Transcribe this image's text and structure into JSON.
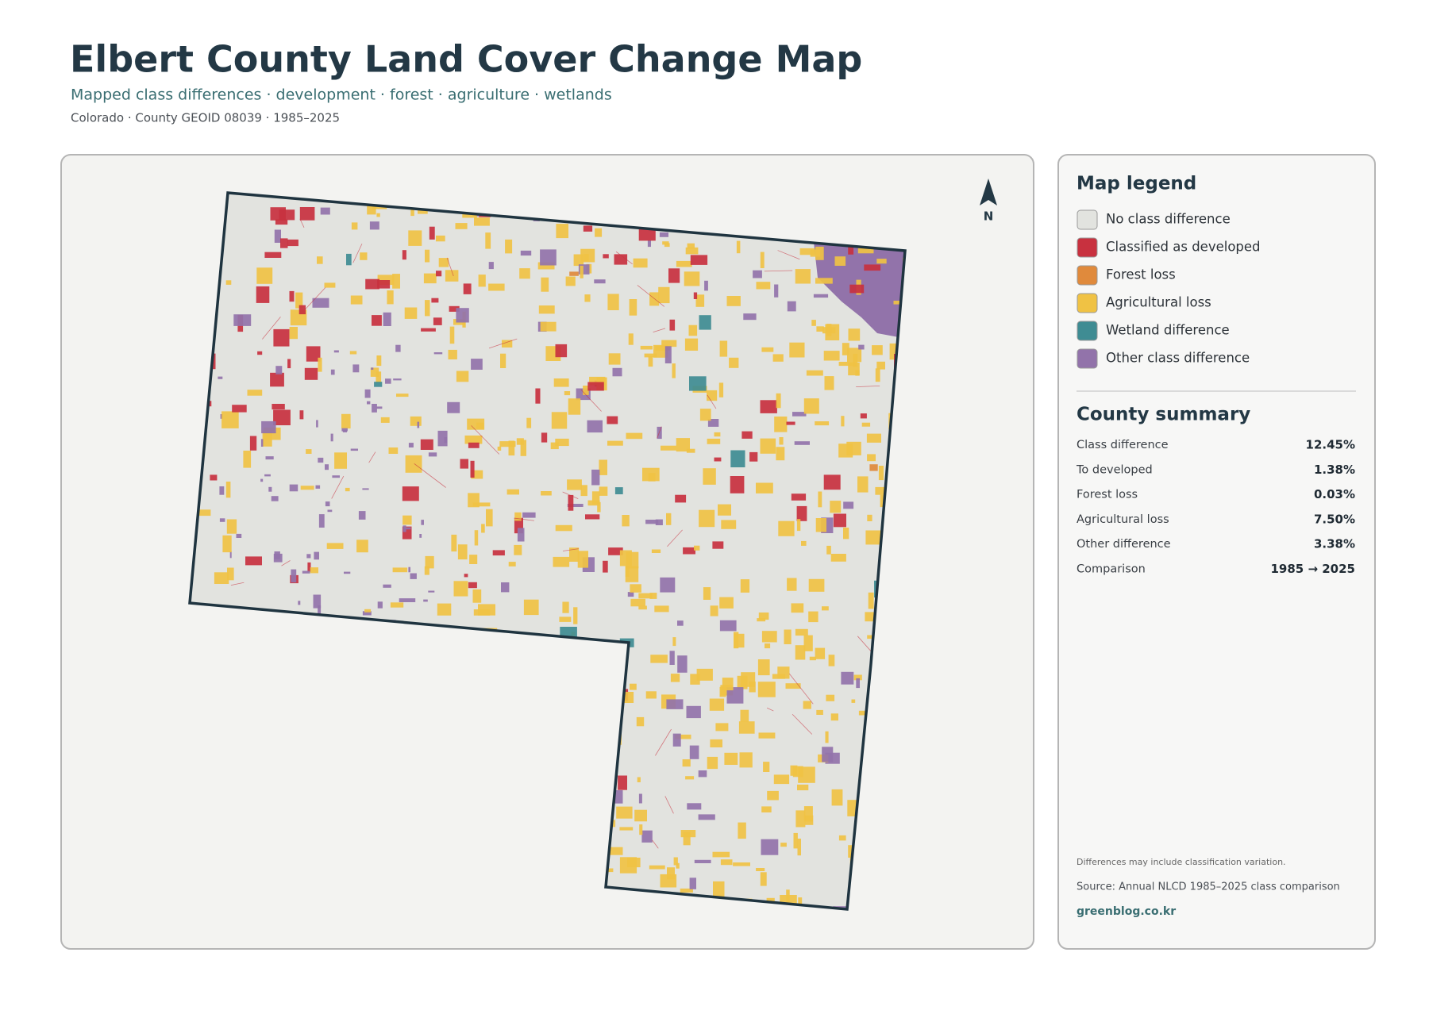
{
  "header": {
    "title": "Elbert County Land Cover Change Map",
    "subtitle": "Mapped class differences · development · forest · agriculture · wetlands",
    "meta": "Colorado · County GEOID 08039 · 1985–2025"
  },
  "map": {
    "north_label": "N"
  },
  "legend": {
    "title": "Map legend",
    "items": [
      {
        "label": "No class difference",
        "color": "#e2e3df"
      },
      {
        "label": "Classified as developed",
        "color": "#c8313f"
      },
      {
        "label": "Forest loss",
        "color": "#e08a3c"
      },
      {
        "label": "Agricultural loss",
        "color": "#f0c244"
      },
      {
        "label": "Wetland difference",
        "color": "#3f8c93"
      },
      {
        "label": "Other class difference",
        "color": "#9273aa"
      }
    ]
  },
  "summary": {
    "title": "County summary",
    "rows": [
      {
        "label": "Class difference",
        "value": "12.45%"
      },
      {
        "label": "To developed",
        "value": "1.38%"
      },
      {
        "label": "Forest loss",
        "value": "0.03%"
      },
      {
        "label": "Agricultural loss",
        "value": "7.50%"
      },
      {
        "label": "Other difference",
        "value": "3.38%"
      },
      {
        "label": "Comparison",
        "value": "1985 → 2025"
      }
    ]
  },
  "footer": {
    "note": "Differences may include classification variation.",
    "source": "Source: Annual NLCD 1985–2025 class comparison",
    "link": "greenblog.co.kr"
  }
}
